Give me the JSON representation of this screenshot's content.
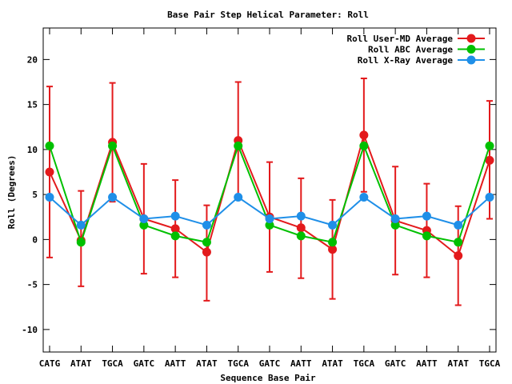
{
  "chart_data": {
    "type": "line",
    "title": "Base Pair Step Helical Parameter: Roll",
    "xlabel": "Sequence Base Pair",
    "ylabel": "Roll (Degrees)",
    "ylim": [
      -12.5,
      23.5
    ],
    "yticks": [
      -10,
      -5,
      0,
      5,
      10,
      15,
      20
    ],
    "categories": [
      "CATG",
      "ATAT",
      "TGCA",
      "GATC",
      "AATT",
      "ATAT",
      "TGCA",
      "GATC",
      "AATT",
      "ATAT",
      "TGCA",
      "GATC",
      "AATT",
      "ATAT",
      "TGCA"
    ],
    "legend_position": "top-right",
    "grid": false,
    "series": [
      {
        "name": "Roll User-MD Average",
        "color": "#e31a1c",
        "values": [
          7.5,
          -0.1,
          10.8,
          2.3,
          1.2,
          -1.4,
          11.0,
          2.5,
          1.3,
          -1.1,
          11.6,
          2.1,
          1.0,
          -1.8,
          8.8
        ],
        "error_low": [
          -2.0,
          -5.2,
          4.2,
          -3.8,
          -4.2,
          -6.8,
          4.5,
          -3.6,
          -4.3,
          -6.6,
          5.3,
          -3.9,
          -4.2,
          -7.3,
          2.3
        ],
        "error_high": [
          17.0,
          5.4,
          17.4,
          8.4,
          6.6,
          3.8,
          17.5,
          8.6,
          6.8,
          4.4,
          17.9,
          8.1,
          6.2,
          3.7,
          15.4
        ]
      },
      {
        "name": "Roll ABC Average",
        "color": "#00c000",
        "values": [
          10.4,
          -0.3,
          10.4,
          1.6,
          0.4,
          -0.3,
          10.4,
          1.6,
          0.4,
          -0.3,
          10.4,
          1.6,
          0.4,
          -0.3,
          10.4
        ]
      },
      {
        "name": "Roll X-Ray Average",
        "color": "#1f8fe8",
        "values": [
          4.7,
          1.6,
          4.7,
          2.3,
          2.6,
          1.6,
          4.7,
          2.3,
          2.6,
          1.6,
          4.7,
          2.3,
          2.6,
          1.6,
          4.7
        ]
      }
    ]
  }
}
